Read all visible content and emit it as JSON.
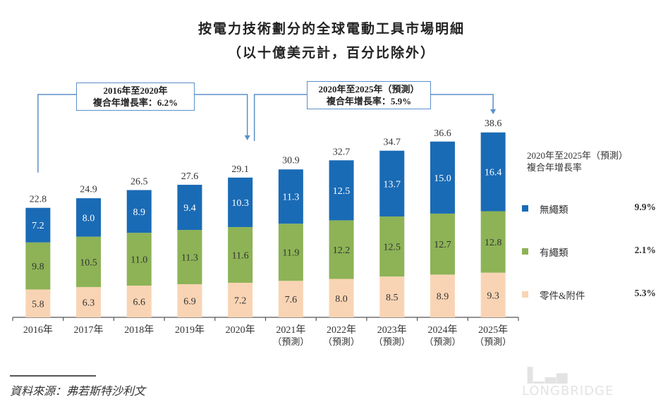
{
  "title": "按電力技術劃分的全球電動工具市場明細",
  "subtitle": "（以十億美元計，百分比除外）",
  "cagr_annotations": [
    {
      "line1": "2016年至2020年",
      "line2": "複合年增長率：6.2%"
    },
    {
      "line1": "2020年至2025年（預測）",
      "line2": "複合年增長率：5.9%"
    }
  ],
  "legend": {
    "heading_line1": "2020年至2025年（預測）",
    "heading_line2": "複合年增長率",
    "items": [
      {
        "label": "無繩類",
        "cagr": "9.9%",
        "color": "#1a6bb5"
      },
      {
        "label": "有繩類",
        "cagr": "2.1%",
        "color": "#8db356"
      },
      {
        "label": "零件&附件",
        "cagr": "5.3%",
        "color": "#f9d4b4"
      }
    ]
  },
  "source": "資料來源：弗若斯特沙利文",
  "watermark": "LONGBRIDGE",
  "chart_data": {
    "type": "bar",
    "stacked": true,
    "title": "按電力技術劃分的全球電動工具市場明細",
    "subtitle": "（以十億美元計，百分比除外）",
    "xlabel": "",
    "ylabel": "",
    "categories": [
      "2016年",
      "2017年",
      "2018年",
      "2019年",
      "2020年",
      "2021年",
      "2022年",
      "2023年",
      "2024年",
      "2025年"
    ],
    "category_sublabels": [
      "",
      "",
      "",
      "",
      "",
      "（預測）",
      "（預測）",
      "（預測）",
      "（預測）",
      "（預測）"
    ],
    "series": [
      {
        "name": "零件&附件",
        "color": "#f9d4b4",
        "label_color": "#333333",
        "values": [
          5.8,
          6.3,
          6.6,
          6.9,
          7.2,
          7.6,
          8.0,
          8.5,
          8.9,
          9.3
        ]
      },
      {
        "name": "有繩類",
        "color": "#8db356",
        "label_color": "#333333",
        "values": [
          9.8,
          10.5,
          11.0,
          11.3,
          11.6,
          11.9,
          12.2,
          12.5,
          12.7,
          12.8
        ]
      },
      {
        "name": "無繩類",
        "color": "#1a6bb5",
        "label_color": "#ffffff",
        "values": [
          7.2,
          8.0,
          8.9,
          9.4,
          10.3,
          11.3,
          12.5,
          13.7,
          15.0,
          16.4
        ]
      }
    ],
    "totals": [
      22.8,
      24.9,
      26.5,
      27.6,
      29.1,
      30.9,
      32.7,
      34.7,
      36.6,
      38.6
    ],
    "ylim": [
      0,
      38.6
    ],
    "grid": false,
    "legend_position": "right"
  }
}
